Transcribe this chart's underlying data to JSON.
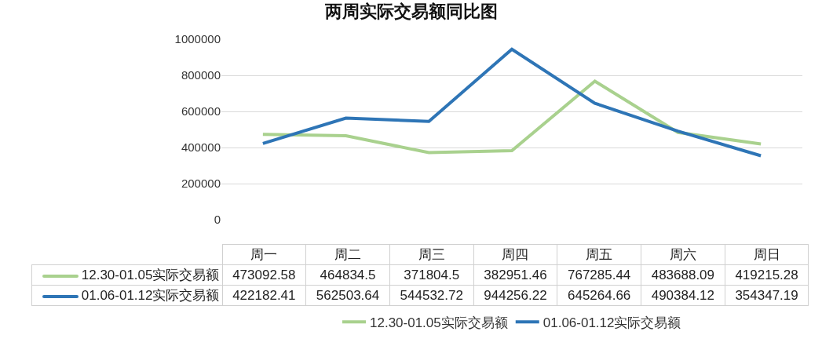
{
  "chart_data": {
    "type": "line",
    "title": "两周实际交易额同比图",
    "categories": [
      "周一",
      "周二",
      "周三",
      "周四",
      "周五",
      "周六",
      "周日"
    ],
    "series": [
      {
        "name": "12.30-01.05实际交易额",
        "color": "#a9d18e",
        "values": [
          473092.58,
          464834.5,
          371804.5,
          382951.46,
          767285.44,
          483688.09,
          419215.28
        ]
      },
      {
        "name": "01.06-01.12实际交易额",
        "color": "#2e75b6",
        "values": [
          422182.41,
          562503.64,
          544532.72,
          944256.22,
          645264.66,
          490384.12,
          354347.19
        ]
      }
    ],
    "ylim": [
      0,
      1000000
    ],
    "yticks": [
      0,
      200000,
      400000,
      600000,
      800000,
      1000000
    ],
    "grid": "y",
    "legend": "bottom",
    "data_labels": true
  }
}
